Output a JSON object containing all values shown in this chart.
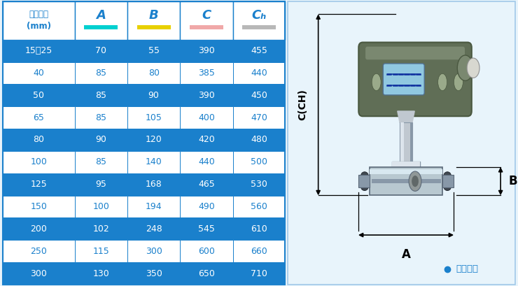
{
  "header_col": "仪表口径\n(mm)",
  "col_headers": [
    "A",
    "B",
    "C",
    "Cₕ"
  ],
  "col_underline_colors": [
    "#00d0d0",
    "#e8d000",
    "#f0a8a8",
    "#b8b8b8"
  ],
  "rows": [
    [
      "15～25",
      "70",
      "55",
      "390",
      "455"
    ],
    [
      "40",
      "85",
      "80",
      "385",
      "440"
    ],
    [
      "50",
      "85",
      "90",
      "390",
      "450"
    ],
    [
      "65",
      "85",
      "105",
      "400",
      "470"
    ],
    [
      "80",
      "90",
      "120",
      "420",
      "480"
    ],
    [
      "100",
      "85",
      "140",
      "440",
      "500"
    ],
    [
      "125",
      "95",
      "168",
      "465",
      "530"
    ],
    [
      "150",
      "100",
      "194",
      "490",
      "560"
    ],
    [
      "200",
      "102",
      "248",
      "545",
      "610"
    ],
    [
      "250",
      "115",
      "300",
      "600",
      "660"
    ],
    [
      "300",
      "130",
      "350",
      "650",
      "710"
    ]
  ],
  "row_bg_blue": "#1a80cc",
  "row_bg_white": "#ffffff",
  "text_blue": "#1a80cc",
  "text_white": "#ffffff",
  "border_color": "#1a80cc",
  "note_text": "常规仪表",
  "note_color": "#1a80cc",
  "dim_label_C": "C(CH)",
  "dim_label_A": "A",
  "dim_label_B": "B",
  "outer_border_color": "#a0c8e8",
  "bg_color": "#e8f4fb"
}
